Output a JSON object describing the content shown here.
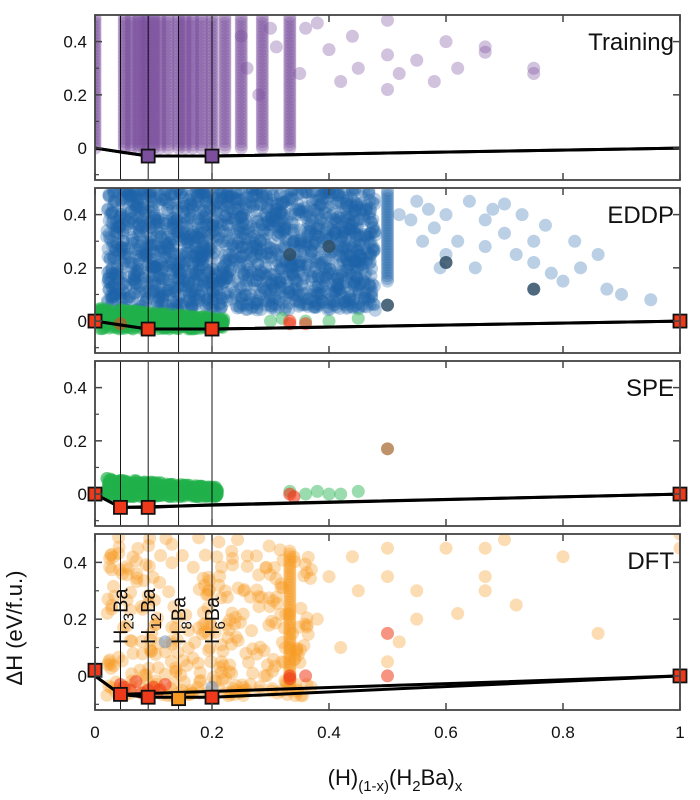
{
  "chart_data": {
    "type": "scatter",
    "xlabel": "(H)(1-x)(H2Ba)x",
    "xlabel_parts": {
      "a": "(H)",
      "b": "(1-x)",
      "c": "(H",
      "d": "2",
      "e": "Ba)",
      "f": "x"
    },
    "ylabel": "ΔH (eV/f.u.)",
    "xlim": [
      0,
      1
    ],
    "ylim": [
      -0.12,
      0.5
    ],
    "x_ticks": [
      "0",
      "0.2",
      "0.4",
      "0.6",
      "0.8",
      "1"
    ],
    "x_tick_values": [
      0,
      0.2,
      0.4,
      0.6,
      0.8,
      1.0
    ],
    "y_ticks": [
      "0",
      "0.2",
      "0.4"
    ],
    "y_tick_values": [
      0,
      0.2,
      0.4
    ],
    "vertical_lines_x": [
      0.0435,
      0.0909,
      0.1429,
      0.2
    ],
    "compounds": [
      {
        "label": "H23Ba",
        "base": "H",
        "sub": "23",
        "tail": "Ba",
        "x": 0.0435
      },
      {
        "label": "H12Ba",
        "base": "H",
        "sub": "12",
        "tail": "Ba",
        "x": 0.0909
      },
      {
        "label": "H8Ba",
        "base": "H",
        "sub": "8",
        "tail": "Ba",
        "x": 0.1429
      },
      {
        "label": "H6Ba",
        "base": "H",
        "sub": "6",
        "tail": "Ba",
        "x": 0.2
      }
    ],
    "colors": {
      "training": "#7b4f9d",
      "eddp": "#1f64a8",
      "green": "#22b24c",
      "red": "#ee3a1a",
      "orange": "#f79a23",
      "hull": "#000000"
    },
    "panels": [
      {
        "name": "Training",
        "label": "Training",
        "hull": [
          [
            0,
            0
          ],
          [
            0.0909,
            -0.03
          ],
          [
            0.2,
            -0.03
          ],
          [
            1,
            0
          ]
        ],
        "hull_upper": [
          [
            0,
            0
          ],
          [
            0.0435,
            -0.015
          ],
          [
            0.0909,
            -0.03
          ],
          [
            0.2,
            -0.03
          ],
          [
            1,
            0
          ]
        ],
        "square_points": [
          {
            "x": 0.0909,
            "y": -0.03,
            "color": "#7b4f9d"
          },
          {
            "x": 0.2,
            "y": -0.03,
            "color": "#7b4f9d"
          }
        ],
        "series": [
          {
            "name": "training",
            "color": "#7b4f9d",
            "opacity": 0.35,
            "columns": [
              0.0,
              0.05,
              0.062,
              0.075,
              0.083,
              0.0909,
              0.1,
              0.111,
              0.125,
              0.143,
              0.154,
              0.167,
              0.182,
              0.2,
              0.222,
              0.25,
              0.286,
              0.333
            ],
            "column_ymin": 0.0,
            "column_ymax": 0.5,
            "sparse": [
              [
                0.25,
                0.42
              ],
              [
                0.26,
                0.3
              ],
              [
                0.3,
                0.45
              ],
              [
                0.31,
                0.38
              ],
              [
                0.35,
                0.28
              ],
              [
                0.36,
                0.45
              ],
              [
                0.4,
                0.37
              ],
              [
                0.42,
                0.25
              ],
              [
                0.44,
                0.42
              ],
              [
                0.5,
                0.35
              ],
              [
                0.5,
                0.22
              ],
              [
                0.52,
                0.28
              ],
              [
                0.55,
                0.33
              ],
              [
                0.58,
                0.25
              ],
              [
                0.6,
                0.4
              ],
              [
                0.62,
                0.3
              ],
              [
                0.667,
                0.38
              ],
              [
                0.667,
                0.36
              ],
              [
                0.75,
                0.3
              ],
              [
                0.75,
                0.28
              ],
              [
                0.38,
                0.47
              ],
              [
                0.45,
                0.3
              ],
              [
                0.5,
                0.48
              ],
              [
                0.28,
                0.2
              ]
            ]
          }
        ]
      },
      {
        "name": "EDDP",
        "label": "EDDP",
        "hull": [
          [
            0,
            0
          ],
          [
            0.0909,
            -0.03
          ],
          [
            0.2,
            -0.03
          ],
          [
            1,
            0
          ]
        ],
        "hull_upper": [
          [
            0,
            0
          ],
          [
            0.0435,
            -0.015
          ],
          [
            0.0909,
            -0.03
          ],
          [
            0.2,
            -0.03
          ],
          [
            1,
            0
          ]
        ],
        "square_points": [
          {
            "x": 0.0,
            "y": 0.0,
            "color": "#ee3a1a"
          },
          {
            "x": 0.0909,
            "y": -0.03,
            "color": "#ee3a1a"
          },
          {
            "x": 0.2,
            "y": -0.03,
            "color": "#ee3a1a"
          },
          {
            "x": 1.0,
            "y": 0.0,
            "color": "#ee3a1a"
          }
        ],
        "series": [
          {
            "name": "eddp",
            "color": "#1f64a8",
            "opacity": 0.3,
            "dense_region": {
              "xmin": 0.02,
              "xmax": 0.48,
              "ymin": 0.04,
              "ymax": 0.5
            },
            "dense_column": {
              "x": 0.5,
              "ymin": 0.15,
              "ymax": 0.5
            },
            "sparse": [
              [
                0.55,
                0.45
              ],
              [
                0.56,
                0.3
              ],
              [
                0.58,
                0.35
              ],
              [
                0.6,
                0.4
              ],
              [
                0.6,
                0.25
              ],
              [
                0.62,
                0.3
              ],
              [
                0.64,
                0.45
              ],
              [
                0.65,
                0.2
              ],
              [
                0.667,
                0.38
              ],
              [
                0.667,
                0.28
              ],
              [
                0.68,
                0.42
              ],
              [
                0.7,
                0.33
              ],
              [
                0.72,
                0.25
              ],
              [
                0.73,
                0.4
              ],
              [
                0.75,
                0.22
              ],
              [
                0.75,
                0.3
              ],
              [
                0.78,
                0.18
              ],
              [
                0.8,
                0.15
              ],
              [
                0.82,
                0.3
              ],
              [
                0.83,
                0.2
              ],
              [
                0.86,
                0.25
              ],
              [
                0.875,
                0.12
              ],
              [
                0.9,
                0.1
              ],
              [
                0.95,
                0.08
              ],
              [
                0.52,
                0.4
              ],
              [
                0.54,
                0.38
              ],
              [
                0.57,
                0.42
              ],
              [
                0.7,
                0.44
              ],
              [
                0.77,
                0.36
              ],
              [
                0.59,
                0.2
              ]
            ],
            "highlight": [
              [
                0.5,
                0.06
              ],
              [
                0.333,
                0.25
              ],
              [
                0.4,
                0.28
              ],
              [
                0.6,
                0.22
              ],
              [
                0.75,
                0.12
              ]
            ]
          },
          {
            "name": "green",
            "color": "#22b24c",
            "opacity": 0.45,
            "band": {
              "xmin": 0.005,
              "xmax": 0.22,
              "ymin": -0.03,
              "ymax": 0.05
            },
            "sparse": [
              [
                0.3,
                0.0
              ],
              [
                0.32,
                0.01
              ],
              [
                0.36,
                0.0
              ],
              [
                0.4,
                0.0
              ],
              [
                0.45,
                0.01
              ]
            ]
          },
          {
            "name": "red",
            "color": "#ee3a1a",
            "opacity": 0.55,
            "sparse": [
              [
                0.0,
                0.0
              ],
              [
                0.0435,
                -0.01
              ],
              [
                0.333,
                0.0
              ],
              [
                0.36,
                -0.01
              ],
              [
                0.333,
                -0.01
              ]
            ]
          }
        ]
      },
      {
        "name": "SPE",
        "label": "SPE",
        "hull": [
          [
            0,
            0
          ],
          [
            0.0435,
            -0.05
          ],
          [
            0.0909,
            -0.05
          ],
          [
            0.2,
            -0.04
          ],
          [
            1,
            0
          ]
        ],
        "hull_upper": [
          [
            0,
            0
          ],
          [
            0.0435,
            -0.05
          ],
          [
            1,
            0
          ]
        ],
        "square_points": [
          {
            "x": 0.0,
            "y": 0.0,
            "color": "#ee3a1a"
          },
          {
            "x": 0.0435,
            "y": -0.05,
            "color": "#ee3a1a"
          },
          {
            "x": 0.0909,
            "y": -0.05,
            "color": "#ee3a1a"
          },
          {
            "x": 1.0,
            "y": 0.0,
            "color": "#ee3a1a"
          }
        ],
        "series": [
          {
            "name": "green",
            "color": "#22b24c",
            "opacity": 0.45,
            "band": {
              "xmin": 0.02,
              "xmax": 0.21,
              "ymin": -0.01,
              "ymax": 0.06
            },
            "sparse": [
              [
                0.333,
                0.01
              ],
              [
                0.36,
                0.0
              ],
              [
                0.38,
                0.01
              ],
              [
                0.4,
                0.0
              ],
              [
                0.42,
                0.0
              ],
              [
                0.45,
                0.01
              ]
            ]
          },
          {
            "name": "red",
            "color": "#ee3a1a",
            "opacity": 0.6,
            "sparse": [
              [
                0.333,
                0.0
              ],
              [
                0.34,
                -0.01
              ]
            ]
          },
          {
            "name": "highlight",
            "color": "#b8865a",
            "opacity": 0.9,
            "sparse": [
              [
                0.5,
                0.17
              ]
            ]
          }
        ]
      },
      {
        "name": "DFT",
        "label": "DFT",
        "hull": [
          [
            0,
            0
          ],
          [
            0.0435,
            -0.065
          ],
          [
            0.0909,
            -0.075
          ],
          [
            0.1429,
            -0.075
          ],
          [
            0.2,
            -0.075
          ],
          [
            1,
            0
          ]
        ],
        "hull_upper": [
          [
            0,
            0
          ],
          [
            0.0435,
            -0.065
          ],
          [
            1,
            0
          ]
        ],
        "square_points": [
          {
            "x": 0.0,
            "y": 0.02,
            "color": "#ee3a1a"
          },
          {
            "x": 0.0435,
            "y": -0.065,
            "color": "#ee3a1a"
          },
          {
            "x": 0.0909,
            "y": -0.075,
            "color": "#ee3a1a"
          },
          {
            "x": 0.1429,
            "y": -0.08,
            "color": "#f79a23"
          },
          {
            "x": 0.2,
            "y": -0.075,
            "color": "#ee3a1a"
          },
          {
            "x": 1.0,
            "y": 0.0,
            "color": "#ee3a1a"
          }
        ],
        "series": [
          {
            "name": "orange",
            "color": "#f79a23",
            "opacity": 0.35,
            "band": {
              "xmin": 0.02,
              "xmax": 0.37,
              "ymin": -0.07,
              "ymax": 0.5
            },
            "dense_column": {
              "x": 0.333,
              "ymin": -0.05,
              "ymax": 0.45
            },
            "sparse": [
              [
                0.45,
                0.3
              ],
              [
                0.5,
                0.45
              ],
              [
                0.5,
                0.35
              ],
              [
                0.5,
                0.05
              ],
              [
                0.52,
                0.12
              ],
              [
                0.55,
                0.2
              ],
              [
                0.6,
                0.45
              ],
              [
                0.62,
                0.22
              ],
              [
                0.667,
                0.35
              ],
              [
                0.667,
                0.3
              ],
              [
                0.667,
                0.45
              ],
              [
                0.7,
                0.48
              ],
              [
                0.72,
                0.25
              ],
              [
                0.8,
                0.42
              ],
              [
                0.86,
                0.15
              ],
              [
                0.42,
                0.1
              ],
              [
                0.38,
                0.2
              ],
              [
                0.4,
                0.35
              ],
              [
                0.44,
                0.42
              ],
              [
                1.0,
                0.45
              ],
              [
                1.0,
                0.5
              ],
              [
                0.55,
                0.3
              ]
            ]
          },
          {
            "name": "red",
            "color": "#ee3a1a",
            "opacity": 0.55,
            "sparse": [
              [
                0.0,
                0.02
              ],
              [
                0.0435,
                -0.03
              ],
              [
                0.05,
                -0.04
              ],
              [
                0.07,
                -0.02
              ],
              [
                0.0909,
                -0.05
              ],
              [
                0.1,
                -0.04
              ],
              [
                0.12,
                -0.03
              ],
              [
                0.333,
                -0.01
              ],
              [
                0.333,
                0.0
              ],
              [
                0.36,
                0.0
              ],
              [
                0.5,
                0.0
              ],
              [
                0.5,
                0.15
              ],
              [
                0.06,
                -0.05
              ],
              [
                0.08,
                -0.06
              ],
              [
                0.11,
                -0.05
              ]
            ]
          },
          {
            "name": "blue",
            "color": "#5a82b8",
            "opacity": 0.45,
            "sparse": [
              [
                0.0,
                0.01
              ],
              [
                0.12,
                0.12
              ],
              [
                0.2,
                -0.04
              ]
            ]
          }
        ]
      }
    ]
  }
}
